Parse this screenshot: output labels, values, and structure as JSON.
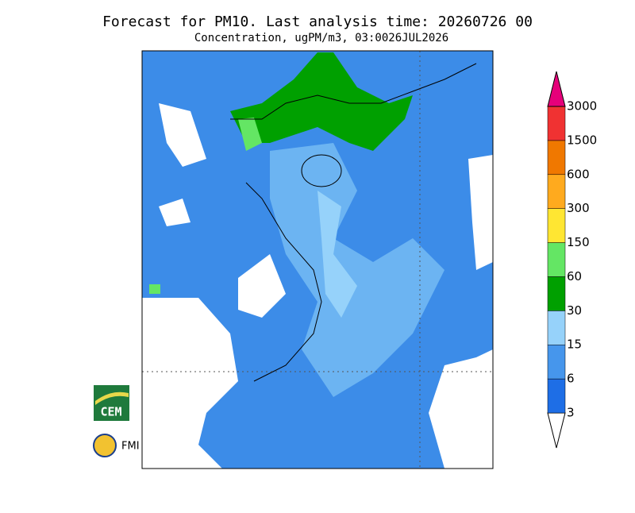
{
  "header": {
    "title": "Forecast for PM10. Last analysis time: 20260726 00",
    "subtitle": "Concentration, ugPM/m3, 03:0026JUL2026"
  },
  "legend": {
    "levels": [
      3,
      6,
      15,
      30,
      60,
      150,
      300,
      600,
      1500,
      3000
    ],
    "colors": [
      "#ffffff",
      "#1e6ee6",
      "#4696ec",
      "#96d2fa",
      "#00a000",
      "#64e664",
      "#ffe632",
      "#ffaa1e",
      "#f07800",
      "#f03232",
      "#e6007a"
    ]
  },
  "logos": [
    "CEM",
    "FMI"
  ]
}
